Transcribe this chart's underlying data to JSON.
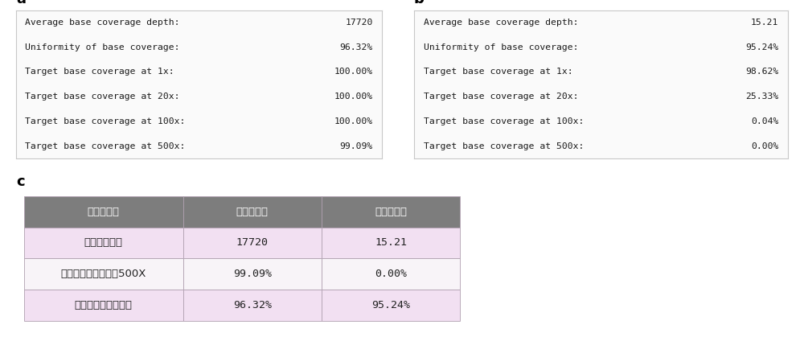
{
  "panel_a_label": "a",
  "panel_b_label": "b",
  "panel_c_label": "c",
  "panel_a_rows": [
    [
      "Average base coverage depth:",
      "17720"
    ],
    [
      "Uniformity of base coverage:",
      "96.32%"
    ],
    [
      "Target base coverage at 1x:",
      "100.00%"
    ],
    [
      "Target base coverage at 20x:",
      "100.00%"
    ],
    [
      "Target base coverage at 100x:",
      "100.00%"
    ],
    [
      "Target base coverage at 500x:",
      "99.09%"
    ]
  ],
  "panel_b_rows": [
    [
      "Average base coverage depth:",
      "15.21"
    ],
    [
      "Uniformity of base coverage:",
      "95.24%"
    ],
    [
      "Target base coverage at 1x:",
      "98.62%"
    ],
    [
      "Target base coverage at 20x:",
      "25.33%"
    ],
    [
      "Target base coverage at 100x:",
      "0.04%"
    ],
    [
      "Target base coverage at 500x:",
      "0.00%"
    ]
  ],
  "panel_c_headers": [
    "覆盖度分析",
    "实施例方法",
    "对照例方法"
  ],
  "panel_c_rows": [
    [
      "平均覆盖深度",
      "17720",
      "15.21"
    ],
    [
      "目标煅基覆盖度达到500X",
      "99.09%",
      "0.00%"
    ],
    [
      "煅基覆盖度的均一性",
      "96.32%",
      "95.24%"
    ]
  ],
  "panel_c_header_bg": "#7d7d7d",
  "panel_c_header_text": "#ffffff",
  "panel_c_row_bg_pink": "#f2e0f2",
  "panel_c_row_bg_white": "#f8f4f8",
  "panel_c_border": "#b0a0b0",
  "panel_ab_bg": "#fafafa",
  "panel_ab_border": "#c8c8c8",
  "text_color_ab": "#1a1a1a",
  "monospace_font": "DejaVu Sans Mono",
  "label_fontsize": 13,
  "ab_text_fontsize": 8.2,
  "c_header_fontsize": 9.5,
  "c_row_fontsize": 9.5
}
